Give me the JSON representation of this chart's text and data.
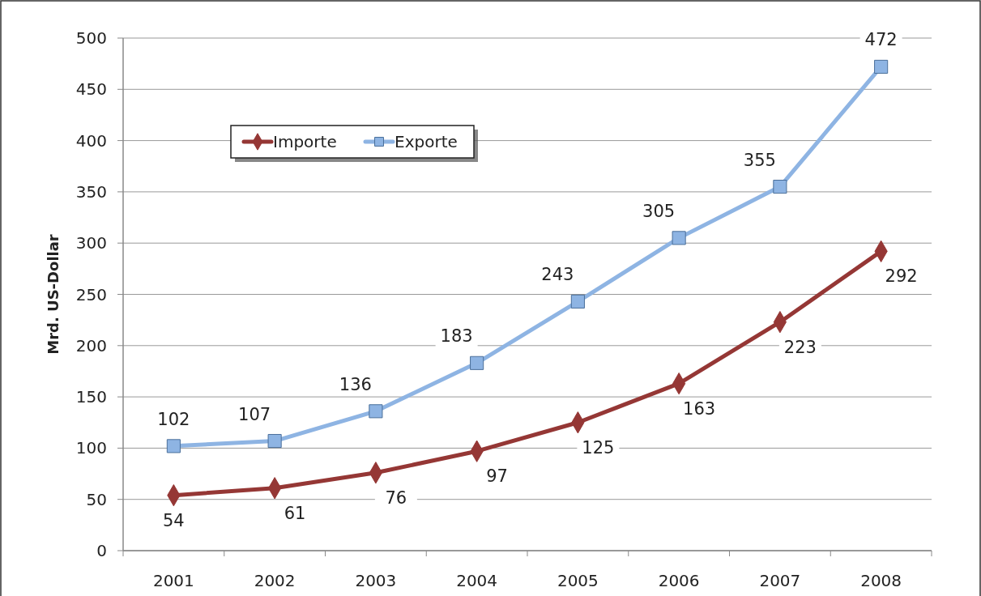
{
  "chart_data": {
    "type": "line",
    "ylabel": "Mrd. US-Dollar",
    "categories": [
      "2001",
      "2002",
      "2003",
      "2004",
      "2005",
      "2006",
      "2007",
      "2008"
    ],
    "series": [
      {
        "name": "Importe",
        "color": "#953735",
        "marker": "diamond",
        "values": [
          54,
          61,
          76,
          97,
          125,
          163,
          223,
          292
        ]
      },
      {
        "name": "Exporte",
        "color": "#8eb4e3",
        "marker": "square",
        "values": [
          102,
          107,
          136,
          183,
          243,
          305,
          355,
          472
        ]
      }
    ],
    "ylim": [
      0,
      500
    ],
    "yticks": [
      0,
      50,
      100,
      150,
      200,
      250,
      300,
      350,
      400,
      450,
      500
    ],
    "grid": "y",
    "legend": "top left",
    "data_labels": true
  }
}
